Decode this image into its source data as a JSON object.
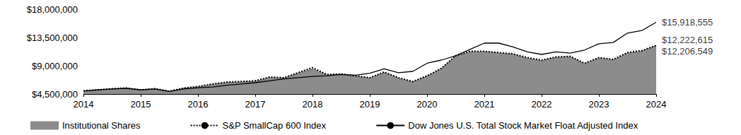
{
  "chart_data": {
    "type": "line",
    "x": [
      2014,
      2014.25,
      2014.5,
      2014.75,
      2015,
      2015.25,
      2015.5,
      2015.75,
      2016,
      2016.25,
      2016.5,
      2016.75,
      2017,
      2017.25,
      2017.5,
      2017.75,
      2018,
      2018.25,
      2018.5,
      2018.75,
      2019,
      2019.25,
      2019.5,
      2019.75,
      2020,
      2020.25,
      2020.5,
      2020.75,
      2021,
      2021.25,
      2021.5,
      2021.75,
      2022,
      2022.25,
      2022.5,
      2022.75,
      2023,
      2023.25,
      2023.5,
      2023.75,
      2024
    ],
    "series": [
      {
        "name": "Institutional Shares",
        "type": "area",
        "color": "#8c8c8c",
        "values": [
          5000000,
          5100000,
          5300000,
          5400000,
          5100000,
          5300000,
          4900000,
          5400000,
          5600000,
          6000000,
          6300000,
          6400000,
          6500000,
          7100000,
          7000000,
          7800000,
          8500000,
          7500000,
          7600000,
          7300000,
          7000000,
          7900000,
          7000000,
          6400000,
          7300000,
          8500000,
          10500000,
          11200000,
          11200000,
          11000000,
          10800000,
          10200000,
          9800000,
          10300000,
          10400000,
          9300000,
          10200000,
          9900000,
          11000000,
          11300000,
          12206549
        ]
      },
      {
        "name": "S&P SmallCap 600 Index",
        "type": "line",
        "color": "#000000",
        "line_style": "dotted",
        "values": [
          5000000,
          5150000,
          5350000,
          5450000,
          5150000,
          5350000,
          4950000,
          5450000,
          5700000,
          6100000,
          6400000,
          6500000,
          6600000,
          7200000,
          7100000,
          7900000,
          8700000,
          7600000,
          7700000,
          7400000,
          7100000,
          8000000,
          7100000,
          6500000,
          7400000,
          8600000,
          10600000,
          11300000,
          11300000,
          11100000,
          10900000,
          10300000,
          9900000,
          10400000,
          10500000,
          9400000,
          10300000,
          10000000,
          11100000,
          11400000,
          12222615
        ]
      },
      {
        "name": "Dow Jones U.S. Total Stock Market Float Adjusted Index",
        "type": "line",
        "color": "#000000",
        "line_style": "solid",
        "values": [
          5000000,
          5200000,
          5300000,
          5400000,
          5200000,
          5300000,
          4900000,
          5300000,
          5500000,
          5600000,
          5900000,
          6100000,
          6300000,
          6600000,
          6900000,
          7100000,
          7300000,
          7400000,
          7600000,
          7500000,
          7800000,
          8500000,
          7900000,
          8100000,
          9400000,
          9900000,
          10600000,
          11600000,
          12600000,
          12600000,
          12000000,
          11200000,
          10800000,
          11200000,
          11000000,
          11500000,
          12500000,
          12700000,
          14200000,
          14600000,
          15918555
        ]
      }
    ],
    "annotations": [
      {
        "text": "$15,918,555",
        "x": 2024,
        "y": 15918555
      },
      {
        "text": "$12,222,615",
        "x": 2024,
        "y": 12222615
      },
      {
        "text": "$12,206,549",
        "x": 2024,
        "y": 12206549
      }
    ],
    "xlim": [
      2014,
      2024
    ],
    "xticks": [
      2014,
      2015,
      2016,
      2017,
      2018,
      2019,
      2020,
      2021,
      2022,
      2023,
      2024
    ],
    "ylim": [
      4500000,
      18000000
    ],
    "yticks": [
      {
        "value": 4500000,
        "label": "$4,500,000"
      },
      {
        "value": 9000000,
        "label": "$9,000,000"
      },
      {
        "value": 13500000,
        "label": "$13,500,000"
      },
      {
        "value": 18000000,
        "label": "$18,000,000"
      }
    ],
    "grid": false,
    "legend": "bottom"
  }
}
